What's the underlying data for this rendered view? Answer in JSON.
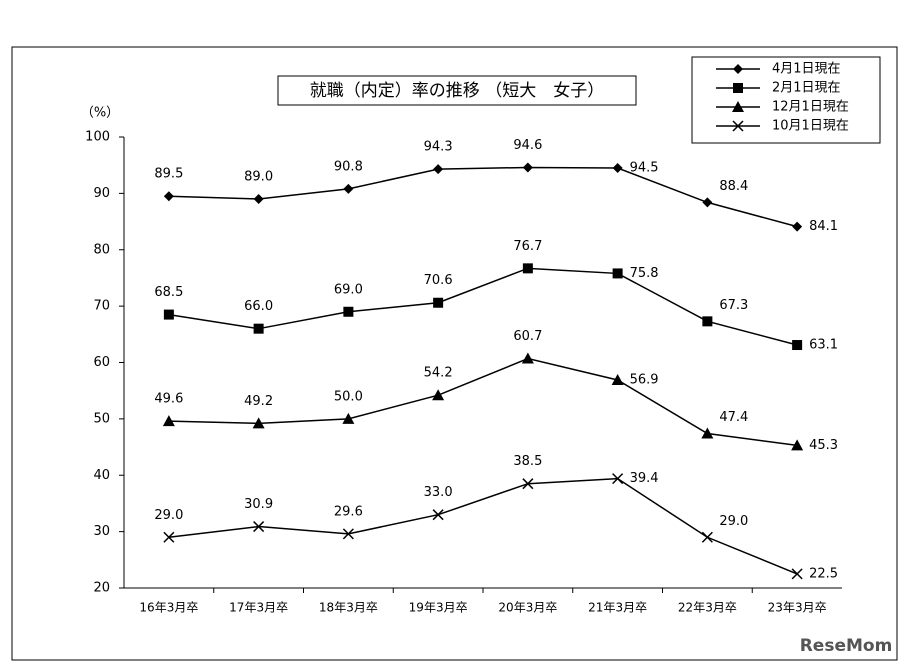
{
  "chart_data": {
    "type": "line",
    "title": "就職（内定）率の推移 （短大　女子）",
    "y_unit": "（%）",
    "watermark": "ReseMom",
    "categories": [
      "16年3月卒",
      "17年3月卒",
      "18年3月卒",
      "19年3月卒",
      "20年3月卒",
      "21年3月卒",
      "22年3月卒",
      "23年3月卒"
    ],
    "series": [
      {
        "name": "4月1日現在",
        "color": "#000000",
        "marker": "diamond",
        "values": [
          89.5,
          89,
          90.8,
          94.3,
          94.6,
          94.5,
          88.4,
          84.1
        ],
        "value_labels": [
          "89.5",
          "89.0",
          "90.8",
          "94.3",
          "94.6",
          "94.5",
          "88.4",
          "84.1"
        ]
      },
      {
        "name": "2月1日現在",
        "color": "#000000",
        "marker": "square",
        "values": [
          68.5,
          66,
          69,
          70.6,
          76.7,
          75.8,
          67.3,
          63.1
        ],
        "value_labels": [
          "68.5",
          "66.0",
          "69.0",
          "70.6",
          "76.7",
          "75.8",
          "67.3",
          "63.1"
        ]
      },
      {
        "name": "12月1日現在",
        "color": "#000000",
        "marker": "triangle",
        "values": [
          49.6,
          49.2,
          50,
          54.2,
          60.7,
          56.9,
          47.4,
          45.3
        ],
        "value_labels": [
          "49.6",
          "49.2",
          "50.0",
          "54.2",
          "60.7",
          "56.9",
          "47.4",
          "45.3"
        ]
      },
      {
        "name": "10月1日現在",
        "color": "#000000",
        "marker": "x",
        "values": [
          29,
          30.9,
          29.6,
          33,
          38.5,
          39.4,
          29,
          22.5
        ],
        "value_labels": [
          "29.0",
          "30.9",
          "29.6",
          "33.0",
          "38.5",
          "39.4",
          "29.0",
          "22.5"
        ]
      }
    ],
    "ylim": [
      20,
      100
    ],
    "yticks": [
      20,
      30,
      40,
      50,
      60,
      70,
      80,
      90,
      100
    ],
    "grid": false,
    "legend": "top-right"
  }
}
